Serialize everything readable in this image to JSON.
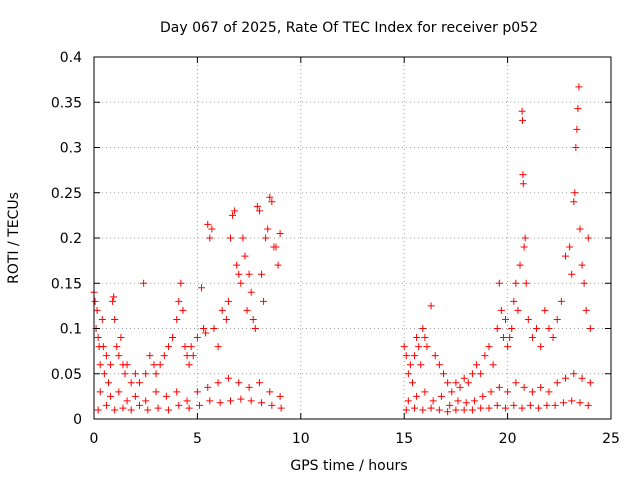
{
  "chart_data": {
    "type": "scatter",
    "title": "Day 067 of 2025, Rate Of TEC Index for receiver p052",
    "xlabel": "GPS time / hours",
    "ylabel": "ROTI / TECUs",
    "xlim": [
      0,
      25
    ],
    "ylim": [
      0,
      0.4
    ],
    "xticks": [
      0,
      5,
      10,
      15,
      20,
      25
    ],
    "xtick_labels": [
      "0",
      "5",
      "10",
      "15",
      "20",
      "25"
    ],
    "yticks": [
      0,
      0.05,
      0.1,
      0.15,
      0.2,
      0.25,
      0.3,
      0.35,
      0.4
    ],
    "ytick_labels": [
      "0",
      "0.05",
      "0.1",
      "0.15",
      "0.2",
      "0.25",
      "0.3",
      "0.35",
      "0.4"
    ],
    "grid": true,
    "marker": "+",
    "color": "#ff0000",
    "series": [
      {
        "name": "ROTI",
        "points": [
          [
            0.0,
            0.14
          ],
          [
            0.05,
            0.13
          ],
          [
            0.1,
            0.1
          ],
          [
            0.15,
            0.12
          ],
          [
            0.2,
            0.09
          ],
          [
            0.25,
            0.08
          ],
          [
            0.3,
            0.06
          ],
          [
            0.4,
            0.11
          ],
          [
            0.45,
            0.08
          ],
          [
            0.5,
            0.05
          ],
          [
            0.6,
            0.07
          ],
          [
            0.7,
            0.04
          ],
          [
            0.8,
            0.06
          ],
          [
            0.9,
            0.13
          ],
          [
            0.95,
            0.135
          ],
          [
            1.0,
            0.11
          ],
          [
            1.1,
            0.08
          ],
          [
            1.2,
            0.07
          ],
          [
            1.3,
            0.09
          ],
          [
            1.4,
            0.06
          ],
          [
            1.5,
            0.05
          ],
          [
            1.6,
            0.06
          ],
          [
            1.8,
            0.04
          ],
          [
            2.0,
            0.05
          ],
          [
            2.2,
            0.04
          ],
          [
            2.4,
            0.15
          ],
          [
            2.5,
            0.05
          ],
          [
            2.7,
            0.07
          ],
          [
            2.9,
            0.06
          ],
          [
            3.0,
            0.05
          ],
          [
            3.2,
            0.06
          ],
          [
            3.4,
            0.07
          ],
          [
            3.6,
            0.08
          ],
          [
            3.8,
            0.09
          ],
          [
            4.0,
            0.11
          ],
          [
            4.1,
            0.13
          ],
          [
            4.2,
            0.15
          ],
          [
            4.3,
            0.12
          ],
          [
            4.4,
            0.08
          ],
          [
            4.5,
            0.07
          ],
          [
            4.6,
            0.06
          ],
          [
            4.7,
            0.08
          ],
          [
            4.8,
            0.07
          ],
          [
            5.0,
            0.09
          ],
          [
            5.2,
            0.145
          ],
          [
            5.3,
            0.1
          ],
          [
            5.4,
            0.095
          ],
          [
            5.5,
            0.215
          ],
          [
            5.6,
            0.2
          ],
          [
            5.7,
            0.21
          ],
          [
            5.8,
            0.1
          ],
          [
            6.0,
            0.08
          ],
          [
            6.2,
            0.12
          ],
          [
            6.4,
            0.11
          ],
          [
            6.5,
            0.13
          ],
          [
            6.6,
            0.2
          ],
          [
            6.7,
            0.225
          ],
          [
            6.8,
            0.23
          ],
          [
            6.9,
            0.17
          ],
          [
            7.0,
            0.16
          ],
          [
            7.1,
            0.15
          ],
          [
            7.2,
            0.2
          ],
          [
            7.3,
            0.18
          ],
          [
            7.4,
            0.12
          ],
          [
            7.5,
            0.16
          ],
          [
            7.6,
            0.14
          ],
          [
            7.7,
            0.11
          ],
          [
            7.8,
            0.1
          ],
          [
            7.9,
            0.235
          ],
          [
            8.0,
            0.23
          ],
          [
            8.1,
            0.16
          ],
          [
            8.2,
            0.13
          ],
          [
            8.3,
            0.2
          ],
          [
            8.4,
            0.21
          ],
          [
            8.5,
            0.245
          ],
          [
            8.6,
            0.24
          ],
          [
            8.7,
            0.19
          ],
          [
            8.8,
            0.19
          ],
          [
            8.9,
            0.17
          ],
          [
            9.0,
            0.205
          ],
          [
            0.3,
            0.03
          ],
          [
            0.8,
            0.025
          ],
          [
            1.2,
            0.03
          ],
          [
            1.6,
            0.02
          ],
          [
            2.0,
            0.025
          ],
          [
            2.5,
            0.02
          ],
          [
            3.0,
            0.03
          ],
          [
            3.5,
            0.025
          ],
          [
            4.0,
            0.03
          ],
          [
            4.5,
            0.02
          ],
          [
            5.0,
            0.03
          ],
          [
            5.5,
            0.035
          ],
          [
            6.0,
            0.04
          ],
          [
            6.5,
            0.045
          ],
          [
            7.0,
            0.04
          ],
          [
            7.5,
            0.035
          ],
          [
            8.0,
            0.04
          ],
          [
            8.5,
            0.03
          ],
          [
            9.0,
            0.025
          ],
          [
            0.2,
            0.01
          ],
          [
            0.6,
            0.015
          ],
          [
            1.0,
            0.01
          ],
          [
            1.4,
            0.012
          ],
          [
            1.8,
            0.01
          ],
          [
            2.2,
            0.015
          ],
          [
            2.6,
            0.01
          ],
          [
            3.1,
            0.012
          ],
          [
            3.6,
            0.01
          ],
          [
            4.1,
            0.015
          ],
          [
            4.6,
            0.012
          ],
          [
            5.1,
            0.015
          ],
          [
            5.6,
            0.02
          ],
          [
            6.1,
            0.018
          ],
          [
            6.6,
            0.02
          ],
          [
            7.1,
            0.022
          ],
          [
            7.6,
            0.02
          ],
          [
            8.1,
            0.018
          ],
          [
            8.6,
            0.015
          ],
          [
            9.05,
            0.012
          ],
          [
            15.0,
            0.08
          ],
          [
            15.1,
            0.07
          ],
          [
            15.2,
            0.05
          ],
          [
            15.3,
            0.06
          ],
          [
            15.4,
            0.04
          ],
          [
            15.5,
            0.07
          ],
          [
            15.6,
            0.09
          ],
          [
            15.7,
            0.08
          ],
          [
            15.8,
            0.06
          ],
          [
            15.9,
            0.1
          ],
          [
            16.0,
            0.09
          ],
          [
            16.1,
            0.08
          ],
          [
            16.3,
            0.125
          ],
          [
            16.5,
            0.07
          ],
          [
            16.7,
            0.06
          ],
          [
            16.9,
            0.05
          ],
          [
            17.1,
            0.04
          ],
          [
            17.3,
            0.03
          ],
          [
            17.5,
            0.04
          ],
          [
            17.7,
            0.035
          ],
          [
            17.9,
            0.045
          ],
          [
            18.1,
            0.04
          ],
          [
            18.3,
            0.05
          ],
          [
            18.5,
            0.06
          ],
          [
            18.7,
            0.05
          ],
          [
            18.9,
            0.07
          ],
          [
            19.1,
            0.08
          ],
          [
            19.3,
            0.06
          ],
          [
            19.5,
            0.1
          ],
          [
            19.6,
            0.15
          ],
          [
            19.7,
            0.12
          ],
          [
            19.8,
            0.09
          ],
          [
            19.9,
            0.11
          ],
          [
            20.0,
            0.08
          ],
          [
            20.1,
            0.09
          ],
          [
            20.2,
            0.1
          ],
          [
            20.3,
            0.13
          ],
          [
            20.4,
            0.15
          ],
          [
            20.5,
            0.12
          ],
          [
            20.6,
            0.17
          ],
          [
            20.7,
            0.34
          ],
          [
            20.72,
            0.33
          ],
          [
            20.74,
            0.27
          ],
          [
            20.76,
            0.26
          ],
          [
            20.8,
            0.19
          ],
          [
            20.85,
            0.2
          ],
          [
            20.9,
            0.15
          ],
          [
            21.0,
            0.11
          ],
          [
            21.2,
            0.09
          ],
          [
            21.4,
            0.1
          ],
          [
            21.6,
            0.08
          ],
          [
            21.8,
            0.12
          ],
          [
            22.0,
            0.1
          ],
          [
            22.2,
            0.09
          ],
          [
            22.4,
            0.11
          ],
          [
            22.6,
            0.13
          ],
          [
            22.8,
            0.18
          ],
          [
            23.0,
            0.19
          ],
          [
            23.1,
            0.16
          ],
          [
            23.2,
            0.24
          ],
          [
            23.25,
            0.25
          ],
          [
            23.3,
            0.3
          ],
          [
            23.35,
            0.32
          ],
          [
            23.4,
            0.343
          ],
          [
            23.45,
            0.367
          ],
          [
            23.5,
            0.21
          ],
          [
            23.6,
            0.17
          ],
          [
            23.7,
            0.15
          ],
          [
            23.8,
            0.12
          ],
          [
            23.9,
            0.2
          ],
          [
            24.0,
            0.1
          ],
          [
            15.2,
            0.02
          ],
          [
            15.6,
            0.025
          ],
          [
            16.0,
            0.03
          ],
          [
            16.4,
            0.02
          ],
          [
            16.8,
            0.025
          ],
          [
            17.2,
            0.015
          ],
          [
            17.6,
            0.02
          ],
          [
            18.0,
            0.018
          ],
          [
            18.4,
            0.02
          ],
          [
            18.8,
            0.025
          ],
          [
            19.2,
            0.03
          ],
          [
            19.6,
            0.035
          ],
          [
            20.0,
            0.03
          ],
          [
            20.4,
            0.04
          ],
          [
            20.8,
            0.035
          ],
          [
            21.2,
            0.03
          ],
          [
            21.6,
            0.035
          ],
          [
            22.0,
            0.03
          ],
          [
            22.4,
            0.04
          ],
          [
            22.8,
            0.045
          ],
          [
            23.2,
            0.05
          ],
          [
            23.6,
            0.045
          ],
          [
            24.0,
            0.04
          ],
          [
            15.1,
            0.01
          ],
          [
            15.5,
            0.012
          ],
          [
            15.9,
            0.01
          ],
          [
            16.3,
            0.012
          ],
          [
            16.7,
            0.01
          ],
          [
            17.1,
            0.008
          ],
          [
            17.5,
            0.01
          ],
          [
            17.9,
            0.01
          ],
          [
            18.3,
            0.01
          ],
          [
            18.7,
            0.012
          ],
          [
            19.1,
            0.012
          ],
          [
            19.5,
            0.015
          ],
          [
            19.9,
            0.012
          ],
          [
            20.3,
            0.015
          ],
          [
            20.7,
            0.012
          ],
          [
            21.1,
            0.015
          ],
          [
            21.5,
            0.012
          ],
          [
            21.9,
            0.015
          ],
          [
            22.3,
            0.015
          ],
          [
            22.7,
            0.018
          ],
          [
            23.1,
            0.02
          ],
          [
            23.5,
            0.018
          ],
          [
            23.9,
            0.015
          ]
        ]
      }
    ]
  }
}
